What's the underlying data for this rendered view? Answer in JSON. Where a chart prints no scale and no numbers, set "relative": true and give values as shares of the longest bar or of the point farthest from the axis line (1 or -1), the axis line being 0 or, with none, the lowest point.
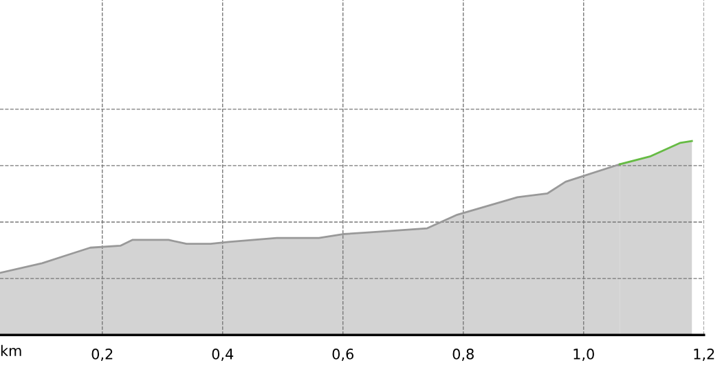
{
  "chart_data": {
    "type": "area",
    "relative": true,
    "xlabel": "km",
    "xlim": [
      0.03,
      1.2
    ],
    "xticks": [
      {
        "value": 0.2,
        "label": "0,2"
      },
      {
        "value": 0.4,
        "label": "0,4"
      },
      {
        "value": 0.6,
        "label": "0,6"
      },
      {
        "value": 0.8,
        "label": "0,8"
      },
      {
        "value": 1.0,
        "label": "1,0"
      },
      {
        "value": 1.2,
        "label": "1,2"
      }
    ],
    "grid": true,
    "line_style": "dashed",
    "series": [
      {
        "color": "#999999",
        "x": [
          0.03,
          0.1,
          0.14,
          0.18,
          0.23,
          0.25,
          0.29,
          0.31,
          0.34,
          0.38,
          0.41,
          0.49,
          0.56,
          0.6,
          0.65,
          0.74,
          0.79,
          0.89,
          0.94,
          0.97,
          1.0,
          1.06
        ],
        "values": [
          0.32,
          0.37,
          0.41,
          0.45,
          0.46,
          0.49,
          0.49,
          0.49,
          0.47,
          0.47,
          0.48,
          0.5,
          0.5,
          0.52,
          0.53,
          0.55,
          0.62,
          0.71,
          0.73,
          0.79,
          0.82,
          0.88
        ]
      },
      {
        "color": "#66bb44",
        "x": [
          1.06,
          1.11,
          1.16,
          1.18
        ],
        "values": [
          0.88,
          0.92,
          0.99,
          1.0
        ]
      }
    ]
  }
}
